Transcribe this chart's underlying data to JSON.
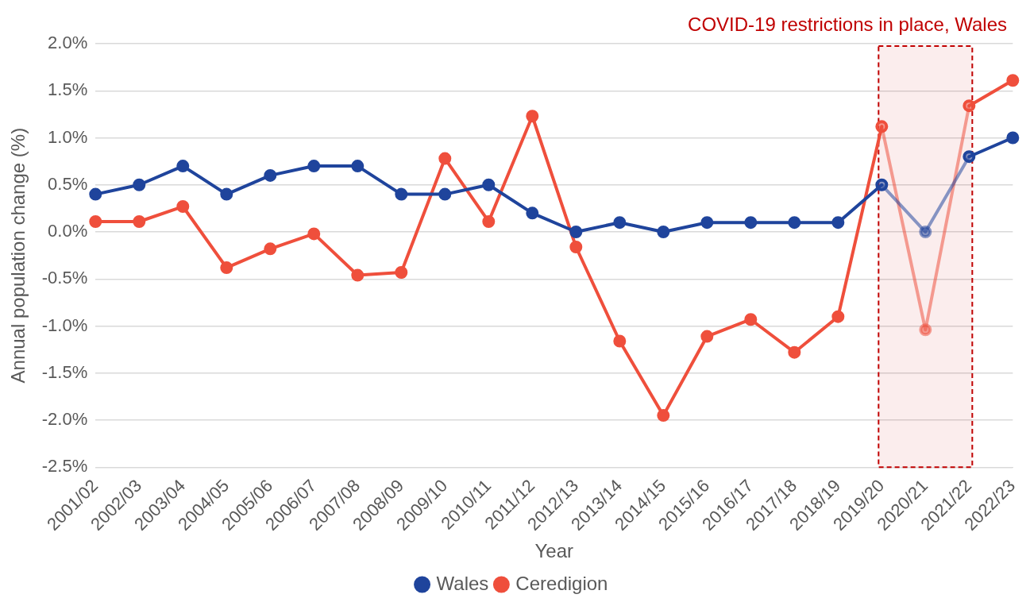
{
  "chart_data": {
    "type": "line",
    "categories": [
      "2001/02",
      "2002/03",
      "2003/04",
      "2004/05",
      "2005/06",
      "2006/07",
      "2007/08",
      "2008/09",
      "2009/10",
      "2010/11",
      "2011/12",
      "2012/13",
      "2013/14",
      "2014/15",
      "2015/16",
      "2016/17",
      "2017/18",
      "2018/19",
      "2019/20",
      "2020/21",
      "2021/22",
      "2022/23"
    ],
    "series": [
      {
        "name": "Wales",
        "color": "#1f449c",
        "values": [
          0.4,
          0.5,
          0.7,
          0.4,
          0.6,
          0.7,
          0.7,
          0.4,
          0.4,
          0.5,
          0.2,
          0.0,
          0.1,
          0.0,
          0.1,
          0.1,
          0.1,
          0.1,
          0.5,
          0.0,
          0.8,
          1.0
        ]
      },
      {
        "name": "Ceredigion",
        "color": "#ef4f3c",
        "values": [
          0.11,
          0.11,
          0.27,
          -0.38,
          -0.18,
          -0.02,
          -0.46,
          -0.43,
          0.78,
          0.11,
          1.23,
          -0.16,
          -1.16,
          -1.95,
          -1.11,
          -0.93,
          -1.28,
          -0.9,
          1.12,
          -1.04,
          1.34,
          1.61
        ]
      }
    ],
    "xlabel": "Year",
    "ylabel": "Annual population change (%)",
    "ylim": [
      -2.5,
      2.0
    ],
    "yticks": [
      {
        "value": -2.5,
        "label": "-2.5%"
      },
      {
        "value": -2.0,
        "label": "-2.0%"
      },
      {
        "value": -1.5,
        "label": "-1.5%"
      },
      {
        "value": -1.0,
        "label": "-1.0%"
      },
      {
        "value": -0.5,
        "label": "-0.5%"
      },
      {
        "value": 0,
        "label": "0.0%"
      },
      {
        "value": 0.5,
        "label": "0.5%"
      },
      {
        "value": 1.0,
        "label": "1.0%"
      },
      {
        "value": 1.5,
        "label": "1.5%"
      },
      {
        "value": 2.0,
        "label": "2.0%"
      }
    ],
    "bands": [
      {
        "axis": "x",
        "from": "2019/20",
        "to": "2021/22",
        "label": "COVID-19 restrictions in place, Wales",
        "color": "#c00000"
      }
    ],
    "grid": "y",
    "legend": "bottom",
    "marker": "circle",
    "line_style": "solid"
  }
}
